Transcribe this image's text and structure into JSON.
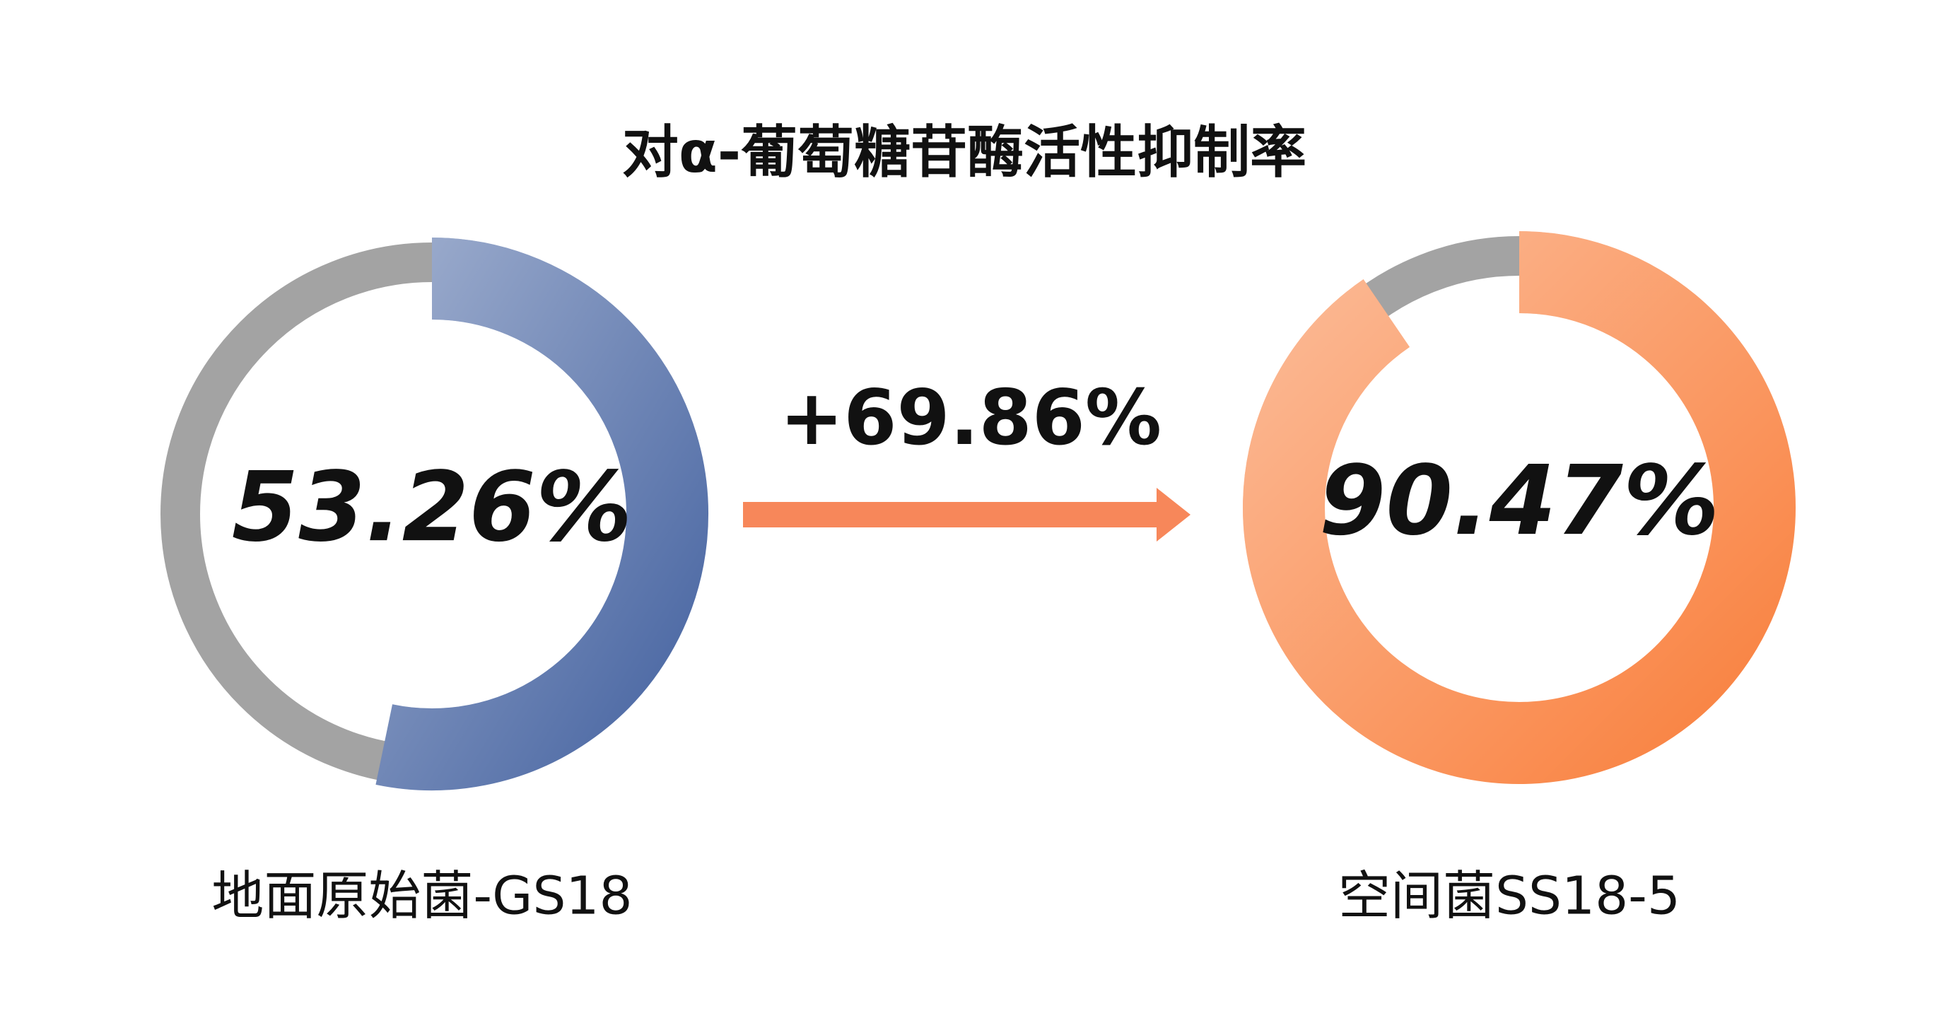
{
  "chart_data": {
    "type": "donut",
    "title": "对α-葡萄糖苷酶活性抑制率",
    "ylim": [
      0,
      100
    ],
    "series": [
      {
        "name": "地面原始菌-GS18",
        "color": "#4a67a3",
        "values": [
          53.26
        ],
        "value_labels": [
          "53.26%"
        ]
      },
      {
        "name": "空间菌SS18-5",
        "color": "#f9813f",
        "values": [
          90.47
        ],
        "value_labels": [
          "90.47%"
        ]
      }
    ],
    "annotation": "+69.86%",
    "track_color": "#a3a3a3",
    "arrow_color": "#f7875a"
  }
}
